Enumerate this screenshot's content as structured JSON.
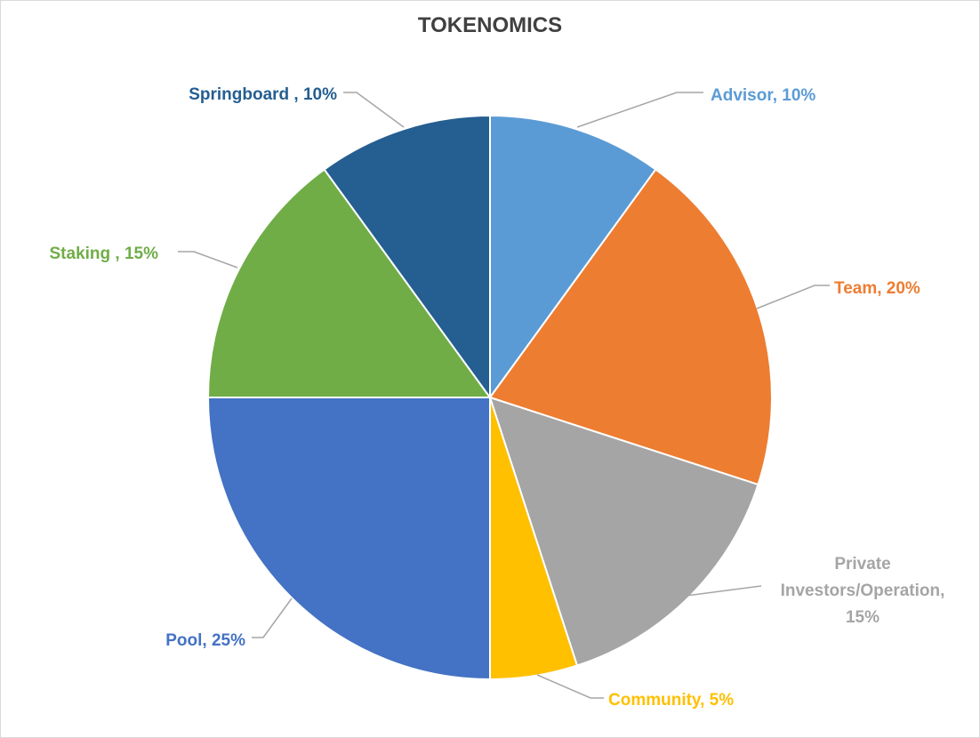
{
  "chart_data": {
    "type": "pie",
    "title": "TOKENOMICS",
    "start_angle_deg": 0,
    "direction": "clockwise",
    "slices": [
      {
        "label": "Advisor",
        "value": 10,
        "display": "Advisor, 10%",
        "color": "#5B9BD5"
      },
      {
        "label": "Team",
        "value": 20,
        "display": "Team, 20%",
        "color": "#ED7D31"
      },
      {
        "label": "Private Investors/Operation",
        "value": 15,
        "display_lines": [
          "Private",
          "Investors/Operation,",
          "15%"
        ],
        "color": "#A5A5A5"
      },
      {
        "label": "Community",
        "value": 5,
        "display": "Community, 5%",
        "color": "#FFC000"
      },
      {
        "label": "Pool",
        "value": 25,
        "display": "Pool, 25%",
        "color": "#4472C4"
      },
      {
        "label": "Staking",
        "value": 15,
        "display": "Staking , 15%",
        "color": "#70AD47"
      },
      {
        "label": "Springboard",
        "value": 10,
        "display": "Springboard , 10%",
        "color": "#255E91"
      }
    ],
    "legend": "none",
    "leader_line_color": "#A6A6A6"
  }
}
